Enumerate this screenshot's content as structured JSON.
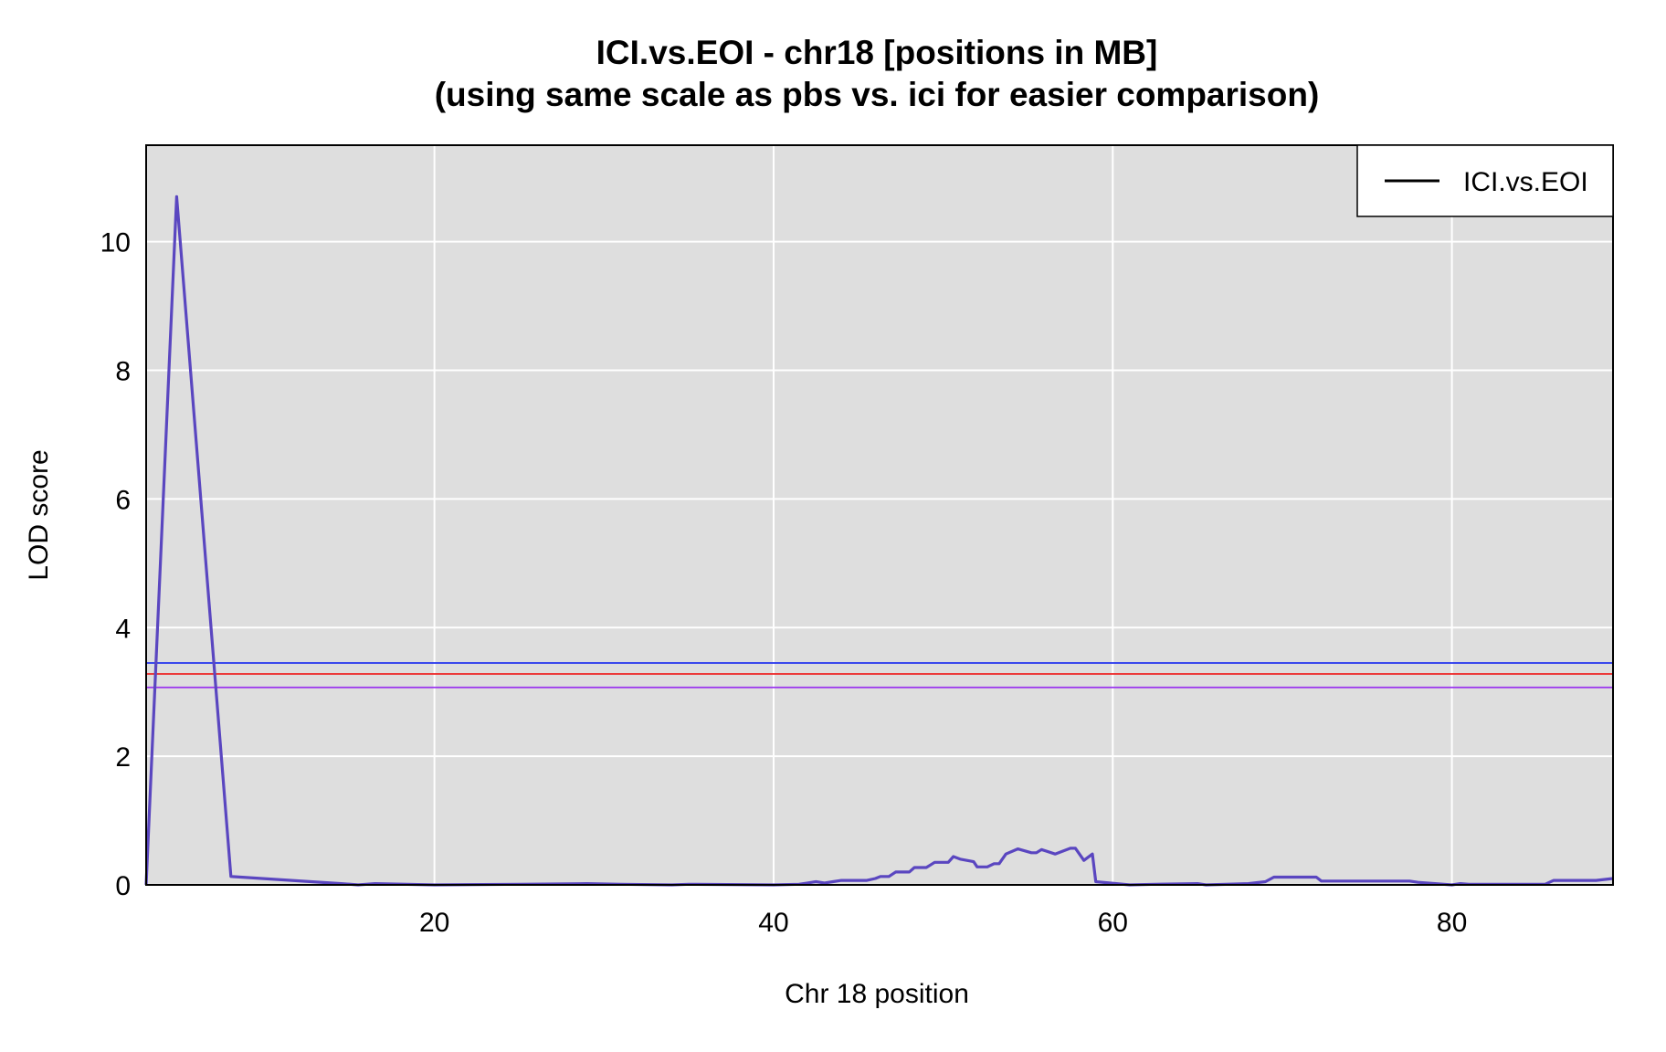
{
  "chart_data": {
    "type": "line",
    "title": "ICI.vs.EOI - chr18 [positions in MB]",
    "subtitle": "(using same scale as pbs vs. ici for easier comparison)",
    "xlabel": "Chr 18 position",
    "ylabel": "LOD score",
    "xlim": [
      3.0,
      89.5
    ],
    "ylim": [
      0,
      11.5
    ],
    "x_ticks": [
      20,
      40,
      60,
      80
    ],
    "y_ticks": [
      0,
      2,
      4,
      6,
      8,
      10
    ],
    "grid": true,
    "background": "#dedede",
    "legend": {
      "position": "top-right",
      "entries": [
        {
          "label": "ICI.vs.EOI",
          "color": "#000000"
        }
      ]
    },
    "series": [
      {
        "name": "ICI.vs.EOI",
        "color": "#5a46c0",
        "x": [
          3.0,
          4.8,
          8.0,
          14.5,
          15.5,
          16.5,
          20.0,
          25.0,
          29.0,
          31.0,
          34.0,
          35.0,
          40.0,
          41.5,
          42.0,
          42.5,
          43.0,
          43.5,
          44.0,
          45.5,
          46.0,
          46.3,
          46.8,
          47.2,
          48.0,
          48.3,
          49.0,
          49.5,
          50.3,
          50.6,
          51.0,
          51.8,
          52.0,
          52.6,
          53.0,
          53.3,
          53.7,
          54.4,
          55.2,
          55.5,
          55.8,
          56.6,
          57.5,
          57.8,
          58.3,
          58.8,
          59.0,
          61.0,
          62.5,
          65.0,
          65.5,
          68.0,
          69.0,
          69.5,
          72.0,
          72.3,
          77.5,
          78.0,
          80.0,
          80.5,
          81.0,
          85.5,
          86.0,
          88.5,
          89.5
        ],
        "values": [
          0.0,
          10.7,
          0.13,
          0.02,
          0.0,
          0.02,
          0.0,
          0.01,
          0.02,
          0.01,
          0.0,
          0.01,
          0.0,
          0.01,
          0.03,
          0.05,
          0.03,
          0.05,
          0.07,
          0.07,
          0.1,
          0.13,
          0.13,
          0.2,
          0.2,
          0.27,
          0.27,
          0.35,
          0.35,
          0.44,
          0.4,
          0.36,
          0.28,
          0.28,
          0.33,
          0.33,
          0.48,
          0.56,
          0.5,
          0.5,
          0.55,
          0.48,
          0.57,
          0.57,
          0.38,
          0.48,
          0.05,
          0.0,
          0.01,
          0.02,
          0.0,
          0.02,
          0.05,
          0.12,
          0.12,
          0.06,
          0.06,
          0.04,
          0.0,
          0.02,
          0.01,
          0.01,
          0.07,
          0.07,
          0.1
        ]
      }
    ],
    "thresholds": [
      {
        "value": 3.45,
        "color": "#2233ee"
      },
      {
        "value": 3.28,
        "color": "#ee2222"
      },
      {
        "value": 3.07,
        "color": "#9933ee"
      }
    ]
  }
}
